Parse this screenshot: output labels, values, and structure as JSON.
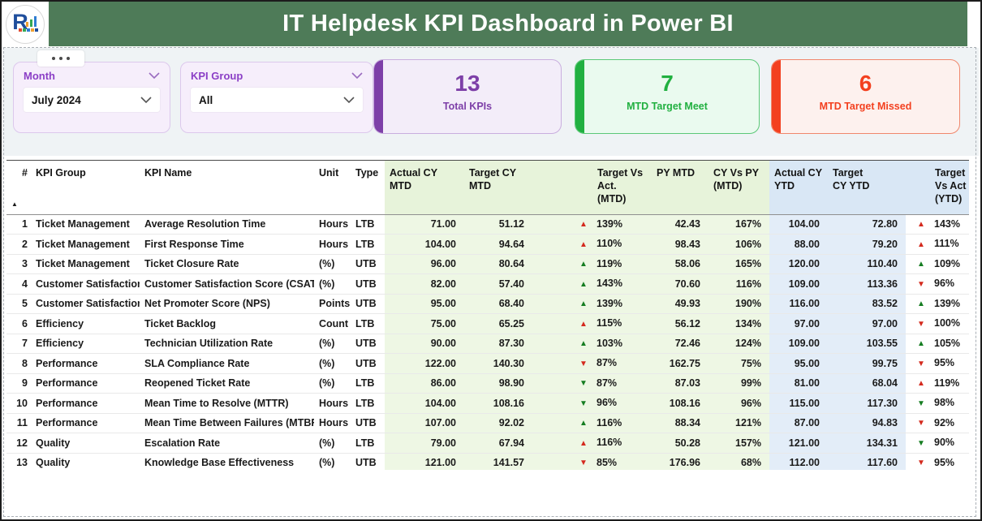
{
  "header": {
    "title": "IT Helpdesk KPI Dashboard in Power BI",
    "logo_letter": "R"
  },
  "colors": {
    "header_green": "#4e7b58",
    "tri_red": "#d42a1e",
    "tri_green": "#157d21"
  },
  "filters": {
    "month": {
      "label": "Month",
      "value": "July 2024"
    },
    "kpi_group": {
      "label": "KPI Group",
      "value": "All"
    }
  },
  "cards": [
    {
      "value": "13",
      "label": "Total KPIs",
      "accent": "#7d3fa8",
      "bg": "#f3edf9",
      "border": "#c9aede"
    },
    {
      "value": "7",
      "label": "MTD Target Meet",
      "accent": "#21b040",
      "bg": "#eafaef",
      "border": "#5cc878"
    },
    {
      "value": "6",
      "label": "MTD Target Missed",
      "accent": "#f3401f",
      "bg": "#fdf1ee",
      "border": "#f0876c"
    }
  ],
  "table": {
    "sort": {
      "column": "#",
      "direction": "ascending"
    },
    "columns": [
      "#",
      "KPI Group",
      "KPI Name",
      "Unit",
      "Type",
      "Actual CY MTD",
      "Target CY MTD",
      "Target Vs Act. (MTD)",
      "PY MTD",
      "CY Vs PY (MTD)",
      "Actual CY YTD",
      "Target CY YTD",
      "Target Vs Act (YTD)"
    ],
    "rows": [
      {
        "num": "1",
        "group": "Ticket Management",
        "name": "Average Resolution Time",
        "unit": "Hours",
        "type": "LTB",
        "actual_mtd": "71.00",
        "target_mtd": "51.12",
        "tva_mtd": {
          "dir": "up",
          "color": "red",
          "pct": "139%"
        },
        "py_mtd": "42.43",
        "cy_vs_py": "167%",
        "actual_ytd": "104.00",
        "target_ytd": "72.80",
        "tva_ytd": {
          "dir": "up",
          "color": "red",
          "pct": "143%"
        }
      },
      {
        "num": "2",
        "group": "Ticket Management",
        "name": "First Response Time",
        "unit": "Hours",
        "type": "LTB",
        "actual_mtd": "104.00",
        "target_mtd": "94.64",
        "tva_mtd": {
          "dir": "up",
          "color": "red",
          "pct": "110%"
        },
        "py_mtd": "98.43",
        "cy_vs_py": "106%",
        "actual_ytd": "88.00",
        "target_ytd": "79.20",
        "tva_ytd": {
          "dir": "up",
          "color": "red",
          "pct": "111%"
        }
      },
      {
        "num": "3",
        "group": "Ticket Management",
        "name": "Ticket Closure Rate",
        "unit": "(%)",
        "type": "UTB",
        "actual_mtd": "96.00",
        "target_mtd": "80.64",
        "tva_mtd": {
          "dir": "up",
          "color": "green",
          "pct": "119%"
        },
        "py_mtd": "58.06",
        "cy_vs_py": "165%",
        "actual_ytd": "120.00",
        "target_ytd": "110.40",
        "tva_ytd": {
          "dir": "up",
          "color": "green",
          "pct": "109%"
        }
      },
      {
        "num": "4",
        "group": "Customer Satisfaction",
        "name": "Customer Satisfaction Score (CSAT)",
        "unit": "(%)",
        "type": "UTB",
        "actual_mtd": "82.00",
        "target_mtd": "57.40",
        "tva_mtd": {
          "dir": "up",
          "color": "green",
          "pct": "143%"
        },
        "py_mtd": "70.60",
        "cy_vs_py": "116%",
        "actual_ytd": "109.00",
        "target_ytd": "113.36",
        "tva_ytd": {
          "dir": "down",
          "color": "red",
          "pct": "96%"
        }
      },
      {
        "num": "5",
        "group": "Customer Satisfaction",
        "name": "Net Promoter Score (NPS)",
        "unit": "Points",
        "type": "UTB",
        "actual_mtd": "95.00",
        "target_mtd": "68.40",
        "tva_mtd": {
          "dir": "up",
          "color": "green",
          "pct": "139%"
        },
        "py_mtd": "49.93",
        "cy_vs_py": "190%",
        "actual_ytd": "116.00",
        "target_ytd": "83.52",
        "tva_ytd": {
          "dir": "up",
          "color": "green",
          "pct": "139%"
        }
      },
      {
        "num": "6",
        "group": "Efficiency",
        "name": "Ticket Backlog",
        "unit": "Count",
        "type": "LTB",
        "actual_mtd": "75.00",
        "target_mtd": "65.25",
        "tva_mtd": {
          "dir": "up",
          "color": "red",
          "pct": "115%"
        },
        "py_mtd": "56.12",
        "cy_vs_py": "134%",
        "actual_ytd": "97.00",
        "target_ytd": "97.00",
        "tva_ytd": {
          "dir": "down",
          "color": "red",
          "pct": "100%"
        }
      },
      {
        "num": "7",
        "group": "Efficiency",
        "name": "Technician Utilization Rate",
        "unit": "(%)",
        "type": "UTB",
        "actual_mtd": "90.00",
        "target_mtd": "87.30",
        "tva_mtd": {
          "dir": "up",
          "color": "green",
          "pct": "103%"
        },
        "py_mtd": "72.46",
        "cy_vs_py": "124%",
        "actual_ytd": "109.00",
        "target_ytd": "103.55",
        "tva_ytd": {
          "dir": "up",
          "color": "green",
          "pct": "105%"
        }
      },
      {
        "num": "8",
        "group": "Performance",
        "name": "SLA Compliance Rate",
        "unit": "(%)",
        "type": "UTB",
        "actual_mtd": "122.00",
        "target_mtd": "140.30",
        "tva_mtd": {
          "dir": "down",
          "color": "red",
          "pct": "87%"
        },
        "py_mtd": "162.75",
        "cy_vs_py": "75%",
        "actual_ytd": "95.00",
        "target_ytd": "99.75",
        "tva_ytd": {
          "dir": "down",
          "color": "red",
          "pct": "95%"
        }
      },
      {
        "num": "9",
        "group": "Performance",
        "name": "Reopened Ticket Rate",
        "unit": "(%)",
        "type": "LTB",
        "actual_mtd": "86.00",
        "target_mtd": "98.90",
        "tva_mtd": {
          "dir": "down",
          "color": "green",
          "pct": "87%"
        },
        "py_mtd": "87.03",
        "cy_vs_py": "99%",
        "actual_ytd": "81.00",
        "target_ytd": "68.04",
        "tva_ytd": {
          "dir": "up",
          "color": "red",
          "pct": "119%"
        }
      },
      {
        "num": "10",
        "group": "Performance",
        "name": "Mean Time to Resolve (MTTR)",
        "unit": "Hours",
        "type": "LTB",
        "actual_mtd": "104.00",
        "target_mtd": "108.16",
        "tva_mtd": {
          "dir": "down",
          "color": "green",
          "pct": "96%"
        },
        "py_mtd": "108.16",
        "cy_vs_py": "96%",
        "actual_ytd": "115.00",
        "target_ytd": "117.30",
        "tva_ytd": {
          "dir": "down",
          "color": "green",
          "pct": "98%"
        }
      },
      {
        "num": "11",
        "group": "Performance",
        "name": "Mean Time Between Failures (MTBF)",
        "unit": "Hours",
        "type": "UTB",
        "actual_mtd": "107.00",
        "target_mtd": "92.02",
        "tva_mtd": {
          "dir": "up",
          "color": "green",
          "pct": "116%"
        },
        "py_mtd": "88.34",
        "cy_vs_py": "121%",
        "actual_ytd": "87.00",
        "target_ytd": "94.83",
        "tva_ytd": {
          "dir": "down",
          "color": "red",
          "pct": "92%"
        }
      },
      {
        "num": "12",
        "group": "Quality",
        "name": "Escalation Rate",
        "unit": "(%)",
        "type": "LTB",
        "actual_mtd": "79.00",
        "target_mtd": "67.94",
        "tva_mtd": {
          "dir": "up",
          "color": "red",
          "pct": "116%"
        },
        "py_mtd": "50.28",
        "cy_vs_py": "157%",
        "actual_ytd": "121.00",
        "target_ytd": "134.31",
        "tva_ytd": {
          "dir": "down",
          "color": "green",
          "pct": "90%"
        }
      },
      {
        "num": "13",
        "group": "Quality",
        "name": "Knowledge Base Effectiveness",
        "unit": "(%)",
        "type": "UTB",
        "actual_mtd": "121.00",
        "target_mtd": "141.57",
        "tva_mtd": {
          "dir": "down",
          "color": "red",
          "pct": "85%"
        },
        "py_mtd": "176.96",
        "cy_vs_py": "68%",
        "actual_ytd": "112.00",
        "target_ytd": "117.60",
        "tva_ytd": {
          "dir": "down",
          "color": "red",
          "pct": "95%"
        }
      }
    ]
  }
}
